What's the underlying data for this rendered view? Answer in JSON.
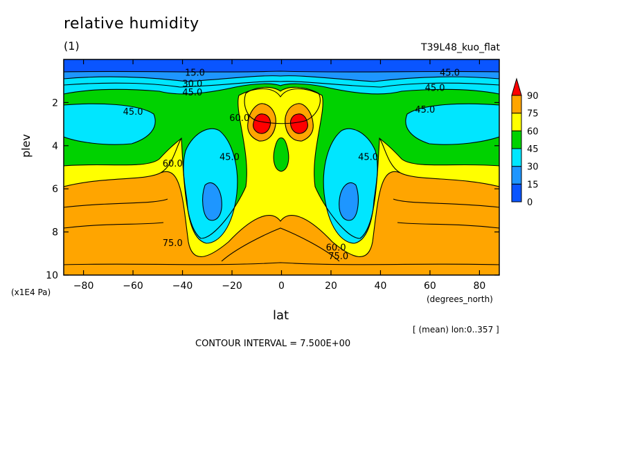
{
  "title": "relative humidity",
  "panel_id": "(1)",
  "run_label": "T39L48_kuo_flat",
  "axes": {
    "xlabel": "lat",
    "xunit": "(degrees_north)",
    "ylabel": "plev",
    "yunit": "(x1E4 Pa)"
  },
  "subset_note": "[ (mean) lon:0..357 ]",
  "contour_interval": "CONTOUR INTERVAL = 7.500E+00",
  "chart_data": {
    "type": "heatmap",
    "title": "relative humidity",
    "xlabel": "lat",
    "ylabel": "plev",
    "xlim": [
      -88,
      88
    ],
    "ylim": [
      10,
      0
    ],
    "x_ticks": [
      -80,
      -60,
      -40,
      -20,
      0,
      20,
      40,
      60,
      80
    ],
    "y_ticks": [
      2,
      4,
      6,
      8,
      10
    ],
    "levels": [
      0,
      15,
      30,
      45,
      60,
      75,
      90
    ],
    "colors": [
      "#0a55ff",
      "#1e96ff",
      "#00e6ff",
      "#00d200",
      "#ffff00",
      "#ffa500",
      "#ff0000"
    ],
    "contour_labels": [
      {
        "text": "15.0",
        "lat": -35,
        "plev": 0.6
      },
      {
        "text": "30.0",
        "lat": -36,
        "plev": 1.1
      },
      {
        "text": "45.0",
        "lat": -36,
        "plev": 1.5
      },
      {
        "text": "45.0",
        "lat": -60,
        "plev": 2.4
      },
      {
        "text": "60.0",
        "lat": -17,
        "plev": 2.7
      },
      {
        "text": "60.0",
        "lat": -44,
        "plev": 4.8
      },
      {
        "text": "45.0",
        "lat": -21,
        "plev": 4.5
      },
      {
        "text": "75.0",
        "lat": -44,
        "plev": 8.5
      },
      {
        "text": "45.0",
        "lat": 68,
        "plev": 0.6
      },
      {
        "text": "45.0",
        "lat": 62,
        "plev": 1.3
      },
      {
        "text": "45.0",
        "lat": 58,
        "plev": 2.3
      },
      {
        "text": "45.0",
        "lat": 35,
        "plev": 4.5
      },
      {
        "text": "60.0",
        "lat": 22,
        "plev": 8.7
      },
      {
        "text": "75.0",
        "lat": 23,
        "plev": 9.1
      }
    ]
  }
}
